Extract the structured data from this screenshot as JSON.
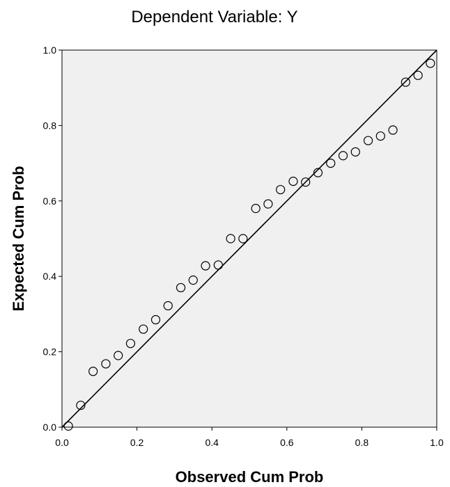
{
  "chart_data": {
    "type": "scatter",
    "title": "Dependent Variable: Y",
    "xlabel": "Observed Cum Prob",
    "ylabel": "Expected Cum Prob",
    "xlim": [
      0.0,
      1.0
    ],
    "ylim": [
      0.0,
      1.0
    ],
    "x_ticks": [
      "0.0",
      "0.2",
      "0.4",
      "0.6",
      "0.8",
      "1.0"
    ],
    "y_ticks": [
      "0.0",
      "0.2",
      "0.4",
      "0.6",
      "0.8",
      "1.0"
    ],
    "grid": false,
    "reference_line": {
      "from": [
        0.0,
        0.0
      ],
      "to": [
        1.0,
        1.0
      ]
    },
    "colors": {
      "plot_background": "#f0f0f0",
      "marker_stroke": "#000000",
      "line": "#000000"
    },
    "points": [
      {
        "x": 0.017,
        "y": 0.003
      },
      {
        "x": 0.05,
        "y": 0.058
      },
      {
        "x": 0.083,
        "y": 0.148
      },
      {
        "x": 0.117,
        "y": 0.168
      },
      {
        "x": 0.15,
        "y": 0.19
      },
      {
        "x": 0.183,
        "y": 0.222
      },
      {
        "x": 0.217,
        "y": 0.26
      },
      {
        "x": 0.25,
        "y": 0.285
      },
      {
        "x": 0.283,
        "y": 0.322
      },
      {
        "x": 0.317,
        "y": 0.37
      },
      {
        "x": 0.35,
        "y": 0.39
      },
      {
        "x": 0.383,
        "y": 0.428
      },
      {
        "x": 0.417,
        "y": 0.43
      },
      {
        "x": 0.45,
        "y": 0.5
      },
      {
        "x": 0.483,
        "y": 0.5
      },
      {
        "x": 0.517,
        "y": 0.58
      },
      {
        "x": 0.55,
        "y": 0.592
      },
      {
        "x": 0.583,
        "y": 0.63
      },
      {
        "x": 0.617,
        "y": 0.652
      },
      {
        "x": 0.65,
        "y": 0.65
      },
      {
        "x": 0.683,
        "y": 0.675
      },
      {
        "x": 0.717,
        "y": 0.7
      },
      {
        "x": 0.75,
        "y": 0.72
      },
      {
        "x": 0.783,
        "y": 0.73
      },
      {
        "x": 0.817,
        "y": 0.76
      },
      {
        "x": 0.85,
        "y": 0.772
      },
      {
        "x": 0.883,
        "y": 0.788
      },
      {
        "x": 0.917,
        "y": 0.915
      },
      {
        "x": 0.95,
        "y": 0.933
      },
      {
        "x": 0.983,
        "y": 0.965
      }
    ]
  }
}
